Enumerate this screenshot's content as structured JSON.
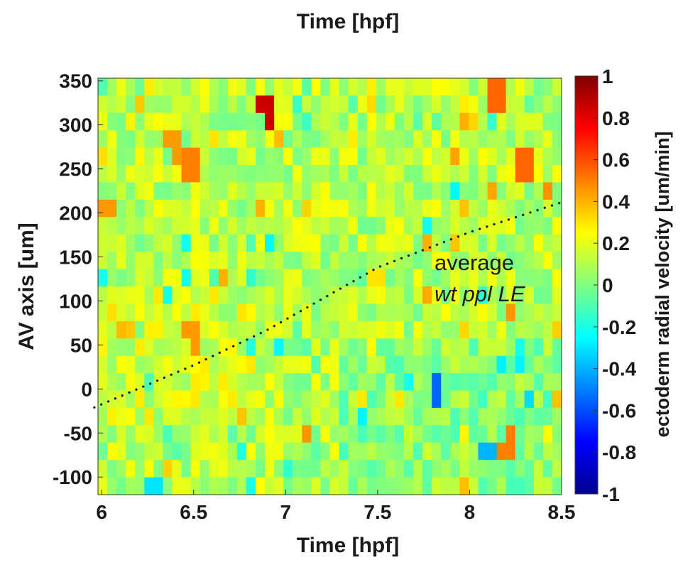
{
  "chart_data": {
    "type": "heatmap",
    "top_label": "Time [hpf]",
    "xlabel": "Time [hpf]",
    "ylabel": "AV axis [um]",
    "colorbar_label": "ectoderm radial velocity [um/min]",
    "xlim": [
      5.98,
      8.5
    ],
    "ylim": [
      -120,
      353
    ],
    "x_ticks": [
      6,
      6.5,
      7,
      7.5,
      8,
      8.5
    ],
    "x_tick_labels": [
      "6",
      "6.5",
      "7",
      "7.5",
      "8",
      "8.5"
    ],
    "y_ticks": [
      350,
      300,
      250,
      200,
      150,
      100,
      50,
      0,
      -50,
      -100
    ],
    "y_tick_labels": [
      "350",
      "300",
      "250",
      "200",
      "150",
      "100",
      "50",
      "0",
      "-50",
      "-100"
    ],
    "colorbar_range": [
      -1,
      1
    ],
    "colorbar_ticks": [
      1,
      0.8,
      0.6,
      0.4,
      0.2,
      0,
      -0.2,
      -0.4,
      -0.6,
      -0.8,
      -1
    ],
    "colorbar_tick_labels": [
      "1",
      "0.8",
      "0.6",
      "0.4",
      "0.2",
      "0",
      "-0.2",
      "-0.4",
      "-0.6",
      "-0.8",
      "-1"
    ],
    "colormap": "jet",
    "grid": {
      "columns": 50,
      "rows": 24,
      "time_start": 5.98,
      "time_end": 8.5,
      "av_start": -120,
      "av_end": 353
    },
    "velocity_pattern": {
      "description": "Mostly near-zero velocity (0 to 0.25 um/min) with scattered positive hotspots; slightly negative values in the lower-right region",
      "hotspots": [
        {
          "time": 6.9,
          "av": 320,
          "value": 0.85
        },
        {
          "time": 6.4,
          "av": 280,
          "value": 0.45
        },
        {
          "time": 6.5,
          "av": 255,
          "value": 0.5
        },
        {
          "time": 6.02,
          "av": 205,
          "value": 0.45
        },
        {
          "time": 6.5,
          "av": 60,
          "value": 0.45
        },
        {
          "time": 8.15,
          "av": 335,
          "value": 0.55
        },
        {
          "time": 8.3,
          "av": 250,
          "value": 0.55
        },
        {
          "time": 8.22,
          "av": -70,
          "value": 0.5
        },
        {
          "time": 7.82,
          "av": 5,
          "value": -0.55
        },
        {
          "time": 8.1,
          "av": -70,
          "value": -0.4
        },
        {
          "time": 6.3,
          "av": -115,
          "value": -0.3
        }
      ]
    },
    "overlay_series": {
      "name": "average wt ppl LE",
      "style": "dotted",
      "color": "#111111",
      "x": [
        5.96,
        6.5,
        6.9,
        7.5,
        8.0,
        8.5
      ],
      "y": [
        -21,
        27,
        67,
        138,
        178,
        212
      ]
    },
    "annotation": {
      "line1": "average",
      "line2": "wt ppl LE",
      "x": 7.82,
      "av": 145
    }
  }
}
